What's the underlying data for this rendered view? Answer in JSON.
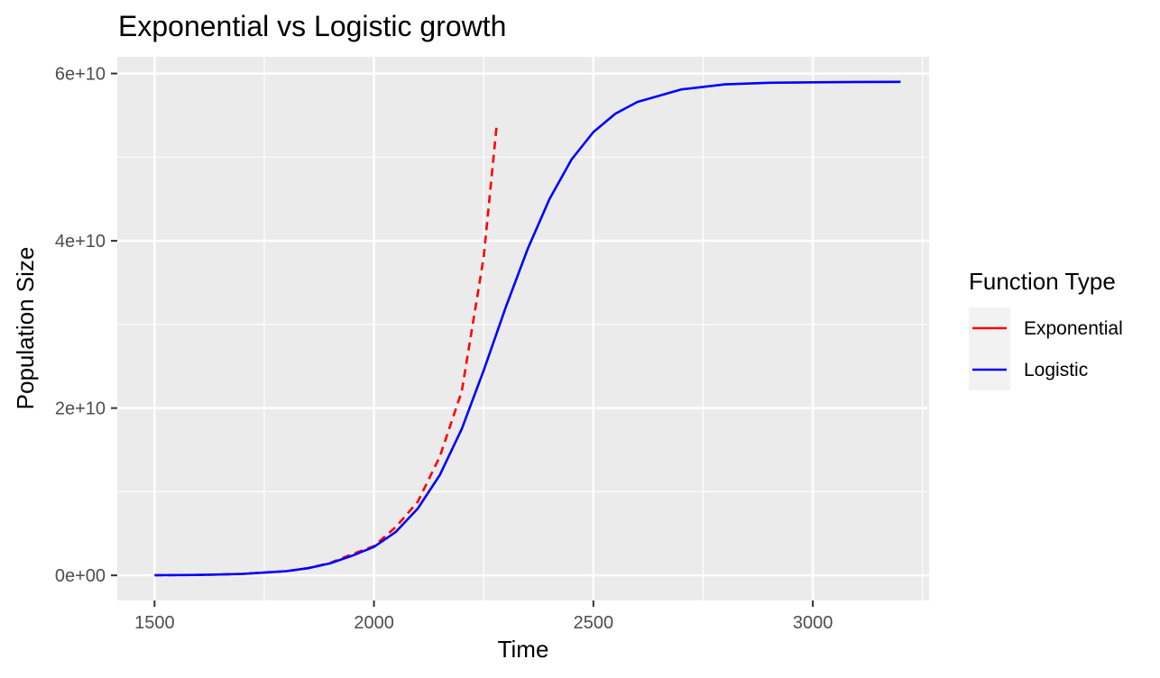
{
  "chart_data": {
    "type": "line",
    "title": "Exponential vs Logistic growth",
    "xlabel": "Time",
    "ylabel": "Population Size",
    "xlim": [
      1415,
      3265
    ],
    "ylim": [
      -3000000000,
      62000000000
    ],
    "x_ticks": [
      1500,
      2000,
      2500,
      3000
    ],
    "x_tick_labels": [
      "1500",
      "2000",
      "2500",
      "3000"
    ],
    "y_ticks": [
      0,
      20000000000,
      40000000000,
      60000000000
    ],
    "y_tick_labels": [
      "0e+00",
      "2e+10",
      "4e+10",
      "6e+10"
    ],
    "grid": true,
    "legend": {
      "title": "Function Type",
      "position": "right",
      "entries": [
        "Exponential",
        "Logistic"
      ]
    },
    "series": [
      {
        "name": "Exponential",
        "color": "#ff0000",
        "dash": "dashed",
        "x": [
          1500,
          1600,
          1700,
          1800,
          1850,
          1900,
          1950,
          2000,
          2050,
          2100,
          2150,
          2200,
          2250,
          2280
        ],
        "y": [
          19000000,
          55000000,
          170000000,
          500000000,
          860000000,
          1480000000,
          2530000000,
          3500000000,
          5800000000,
          8800000000,
          14200000000,
          22000000000,
          38000000000,
          54000000000
        ]
      },
      {
        "name": "Logistic",
        "color": "#0000ff",
        "dash": "solid",
        "x": [
          1500,
          1600,
          1700,
          1800,
          1850,
          1900,
          1950,
          2000,
          2050,
          2100,
          2150,
          2200,
          2250,
          2300,
          2350,
          2400,
          2450,
          2500,
          2550,
          2600,
          2700,
          2800,
          2900,
          3000,
          3100,
          3200
        ],
        "y": [
          19000000,
          55000000,
          170000000,
          500000000,
          860000000,
          1430000000,
          2350000000,
          3400000000,
          5200000000,
          8000000000,
          12000000000,
          17500000000,
          24500000000,
          32000000000,
          39000000000,
          45000000000,
          49700000000,
          53000000000,
          55200000000,
          56600000000,
          58100000000,
          58700000000,
          58900000000,
          58950000000,
          58990000000,
          59000000000
        ]
      }
    ],
    "colors": {
      "panel_background": "#ebebeb",
      "grid_line": "#ffffff",
      "legend_key_background": "#f2f2f2"
    }
  }
}
